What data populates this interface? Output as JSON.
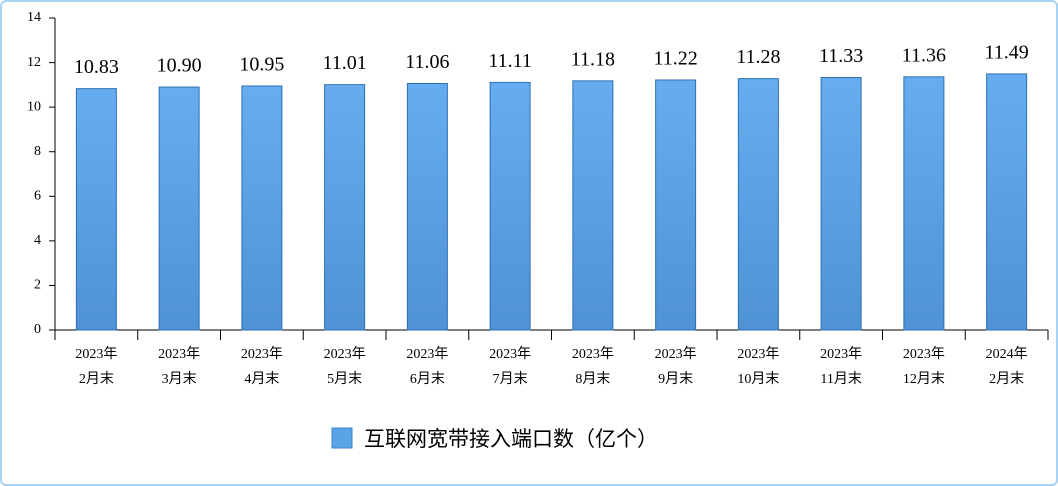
{
  "chart_data": {
    "type": "bar",
    "categories": [
      "2023年\n2月末",
      "2023年\n3月末",
      "2023年\n4月末",
      "2023年\n5月末",
      "2023年\n6月末",
      "2023年\n7月末",
      "2023年\n8月末",
      "2023年\n9月末",
      "2023年\n10月末",
      "2023年\n11月末",
      "2023年\n12月末",
      "2024年\n2月末"
    ],
    "series": [
      {
        "name": "互联网宽带接入端口数（亿个）",
        "color": "#5aa3e6",
        "values": [
          10.83,
          10.9,
          10.95,
          11.01,
          11.06,
          11.11,
          11.18,
          11.22,
          11.28,
          11.33,
          11.36,
          11.49
        ],
        "value_labels": [
          "10.83",
          "10.90",
          "10.95",
          "11.01",
          "11.06",
          "11.11",
          "11.18",
          "11.22",
          "11.28",
          "11.33",
          "11.36",
          "11.49"
        ]
      }
    ],
    "ylim": [
      0,
      14
    ],
    "yticks": [
      0,
      2,
      4,
      6,
      8,
      10,
      12,
      14
    ],
    "legend": "bottom"
  }
}
